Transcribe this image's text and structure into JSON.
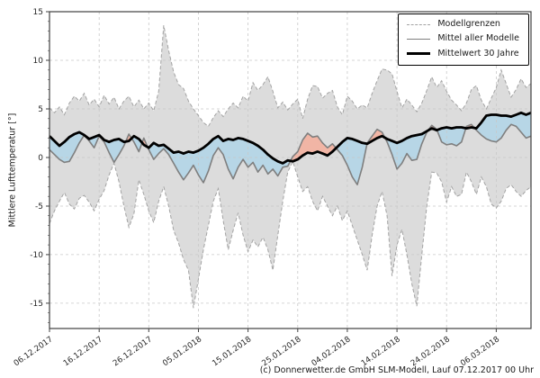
{
  "chart_data": {
    "type": "line",
    "title": "",
    "ylabel": "Mittlere Lufttemperatur [°]",
    "footer": "(c) Donnerwetter.de GmbH SLM-Modell, Lauf 07.12.2017 00 Uhr",
    "x_axis": {
      "start_date": "06.12.2017",
      "x_unit": "days since 06.12.2017",
      "tick_positions_days": [
        0,
        10,
        20,
        30,
        40,
        50,
        60,
        70,
        80,
        90
      ],
      "tick_labels": [
        "06.12.2017",
        "16.12.2017",
        "26.12.2017",
        "05.01.2018",
        "15.01.2018",
        "25.01.2018",
        "04.02.2018",
        "14.02.2018",
        "24.02.2018",
        "06.03.2018"
      ],
      "label_rotation_deg": -35
    },
    "y_axis": {
      "label": "Mittlere Lufttemperatur [°]",
      "ticks": [
        -15,
        -10,
        -5,
        0,
        5,
        10,
        15
      ],
      "limits": [
        -17.6,
        15
      ]
    },
    "grid": true,
    "legend": {
      "position": "upper right",
      "entries": [
        {
          "label": "Modellgrenzen",
          "style": "dashed-gray"
        },
        {
          "label": "Mittel aller Modelle",
          "style": "solid-gray"
        },
        {
          "label": "Mittelwert 30 Jahre",
          "style": "thick-black"
        }
      ]
    },
    "colors": {
      "band": "#dcdcdc",
      "bound_line": "#a3a3a3",
      "mean_line": "#7f7f7f",
      "climate_line": "#000000",
      "below_normal": "#b7d6e6",
      "above_normal": "#f1b5a5",
      "grid": "#c8c8c8",
      "frame": "#404040",
      "text": "#262626"
    },
    "series": [
      {
        "name": "Modellgrenzen (obere Grenze)",
        "role": "upper",
        "values": [
          5.1,
          4.6,
          5.2,
          4.4,
          5.6,
          6.3,
          5.8,
          6.6,
          5.4,
          6.0,
          5.2,
          6.4,
          5.5,
          6.2,
          5.0,
          5.8,
          6.3,
          5.2,
          5.9,
          5.0,
          5.6,
          4.8,
          6.8,
          13.6,
          11.0,
          8.8,
          7.5,
          7.1,
          5.8,
          5.0,
          4.3,
          3.6,
          3.2,
          4.1,
          4.8,
          4.2,
          5.0,
          5.6,
          5.1,
          6.3,
          5.8,
          7.7,
          6.9,
          7.5,
          8.3,
          6.8,
          5.1,
          5.7,
          4.9,
          5.5,
          6.0,
          4.0,
          6.0,
          7.4,
          7.3,
          6.1,
          6.6,
          6.9,
          5.2,
          4.4,
          6.3,
          5.8,
          5.0,
          5.4,
          5.1,
          6.6,
          7.9,
          9.1,
          9.0,
          8.6,
          6.8,
          5.1,
          6.0,
          5.4,
          4.7,
          5.6,
          6.9,
          8.3,
          7.2,
          7.9,
          6.8,
          5.9,
          5.4,
          4.8,
          5.6,
          7.0,
          7.4,
          5.9,
          5.0,
          6.1,
          7.2,
          9.0,
          7.6,
          6.2,
          7.0,
          8.1,
          7.2,
          7.6
        ]
      },
      {
        "name": "Modellgrenzen (untere Grenze)",
        "role": "lower",
        "values": [
          -6.8,
          -5.5,
          -4.5,
          -3.6,
          -4.8,
          -5.3,
          -4.2,
          -3.9,
          -4.6,
          -5.5,
          -4.3,
          -3.4,
          -1.8,
          -0.6,
          -2.5,
          -5.0,
          -7.2,
          -5.8,
          -2.3,
          -3.8,
          -5.5,
          -6.7,
          -4.5,
          -3.0,
          -5.0,
          -7.5,
          -8.8,
          -10.5,
          -11.6,
          -15.5,
          -12.5,
          -9.5,
          -7.0,
          -4.5,
          -3.2,
          -6.5,
          -9.5,
          -7.5,
          -5.7,
          -8.0,
          -9.7,
          -8.5,
          -9.2,
          -8.2,
          -9.5,
          -11.6,
          -8.0,
          -4.5,
          -1.5,
          -0.4,
          -2.0,
          -3.5,
          -3.0,
          -4.5,
          -5.5,
          -4.0,
          -5.0,
          -6.0,
          -5.0,
          -6.5,
          -5.5,
          -7.0,
          -8.5,
          -10.0,
          -11.6,
          -8.0,
          -5.0,
          -3.5,
          -6.0,
          -12.2,
          -9.0,
          -7.4,
          -10.0,
          -13.0,
          -15.3,
          -10.0,
          -5.0,
          -1.5,
          -1.6,
          -2.5,
          -4.6,
          -3.0,
          -4.0,
          -3.8,
          -1.5,
          -2.5,
          -3.8,
          -2.0,
          -3.0,
          -4.8,
          -5.2,
          -4.5,
          -3.2,
          -2.8,
          -3.5,
          -4.0,
          -3.4,
          -3.0
        ]
      },
      {
        "name": "Mittel aller Modelle",
        "role": "mean",
        "values": [
          0.8,
          0.3,
          -0.2,
          -0.5,
          -0.4,
          0.5,
          1.5,
          2.3,
          1.7,
          1.0,
          2.2,
          1.6,
          0.5,
          -0.5,
          0.3,
          1.2,
          2.4,
          1.6,
          0.6,
          2.0,
          0.8,
          -0.2,
          0.4,
          0.9,
          0.3,
          -0.6,
          -1.5,
          -2.3,
          -1.6,
          -0.8,
          -1.8,
          -2.6,
          -1.4,
          0.2,
          1.0,
          0.3,
          -1.2,
          -2.2,
          -1.0,
          -0.2,
          -1.0,
          -0.5,
          -1.5,
          -0.8,
          -1.7,
          -1.2,
          -1.9,
          -1.0,
          -0.9,
          0.1,
          0.6,
          1.8,
          2.5,
          2.1,
          2.2,
          1.5,
          1.0,
          1.4,
          0.8,
          0.2,
          -0.8,
          -2.0,
          -2.8,
          -1.0,
          1.5,
          2.2,
          2.9,
          2.6,
          1.6,
          0.3,
          -1.2,
          -0.6,
          0.4,
          -0.3,
          -0.2,
          1.4,
          2.6,
          3.3,
          2.9,
          1.6,
          1.3,
          1.4,
          1.2,
          1.6,
          3.2,
          3.4,
          2.8,
          2.3,
          1.9,
          1.7,
          1.6,
          2.0,
          2.8,
          3.4,
          3.2,
          2.6,
          2.0,
          2.2
        ]
      },
      {
        "name": "Mittelwert 30 Jahre",
        "role": "climate",
        "values": [
          2.2,
          1.7,
          1.2,
          1.6,
          2.1,
          2.4,
          2.6,
          2.3,
          1.9,
          2.1,
          2.3,
          1.8,
          1.6,
          1.8,
          1.9,
          1.6,
          1.7,
          2.2,
          1.9,
          1.3,
          1.0,
          1.5,
          1.2,
          1.3,
          0.9,
          0.5,
          0.6,
          0.4,
          0.6,
          0.5,
          0.7,
          1.0,
          1.4,
          1.9,
          2.2,
          1.7,
          1.9,
          1.8,
          2.0,
          1.9,
          1.7,
          1.5,
          1.2,
          0.8,
          0.3,
          -0.1,
          -0.4,
          -0.6,
          -0.3,
          -0.4,
          -0.2,
          0.2,
          0.5,
          0.4,
          0.6,
          0.4,
          0.2,
          0.6,
          1.1,
          1.6,
          2.0,
          1.9,
          1.7,
          1.5,
          1.4,
          1.7,
          2.0,
          2.2,
          1.9,
          1.7,
          1.5,
          1.7,
          2.0,
          2.2,
          2.3,
          2.4,
          2.7,
          3.0,
          2.8,
          3.0,
          3.1,
          3.0,
          3.1,
          3.1,
          3.0,
          3.1,
          3.0,
          3.6,
          4.3,
          4.4,
          4.4,
          4.3,
          4.3,
          4.2,
          4.4,
          4.6,
          4.4,
          4.6
        ]
      }
    ]
  }
}
